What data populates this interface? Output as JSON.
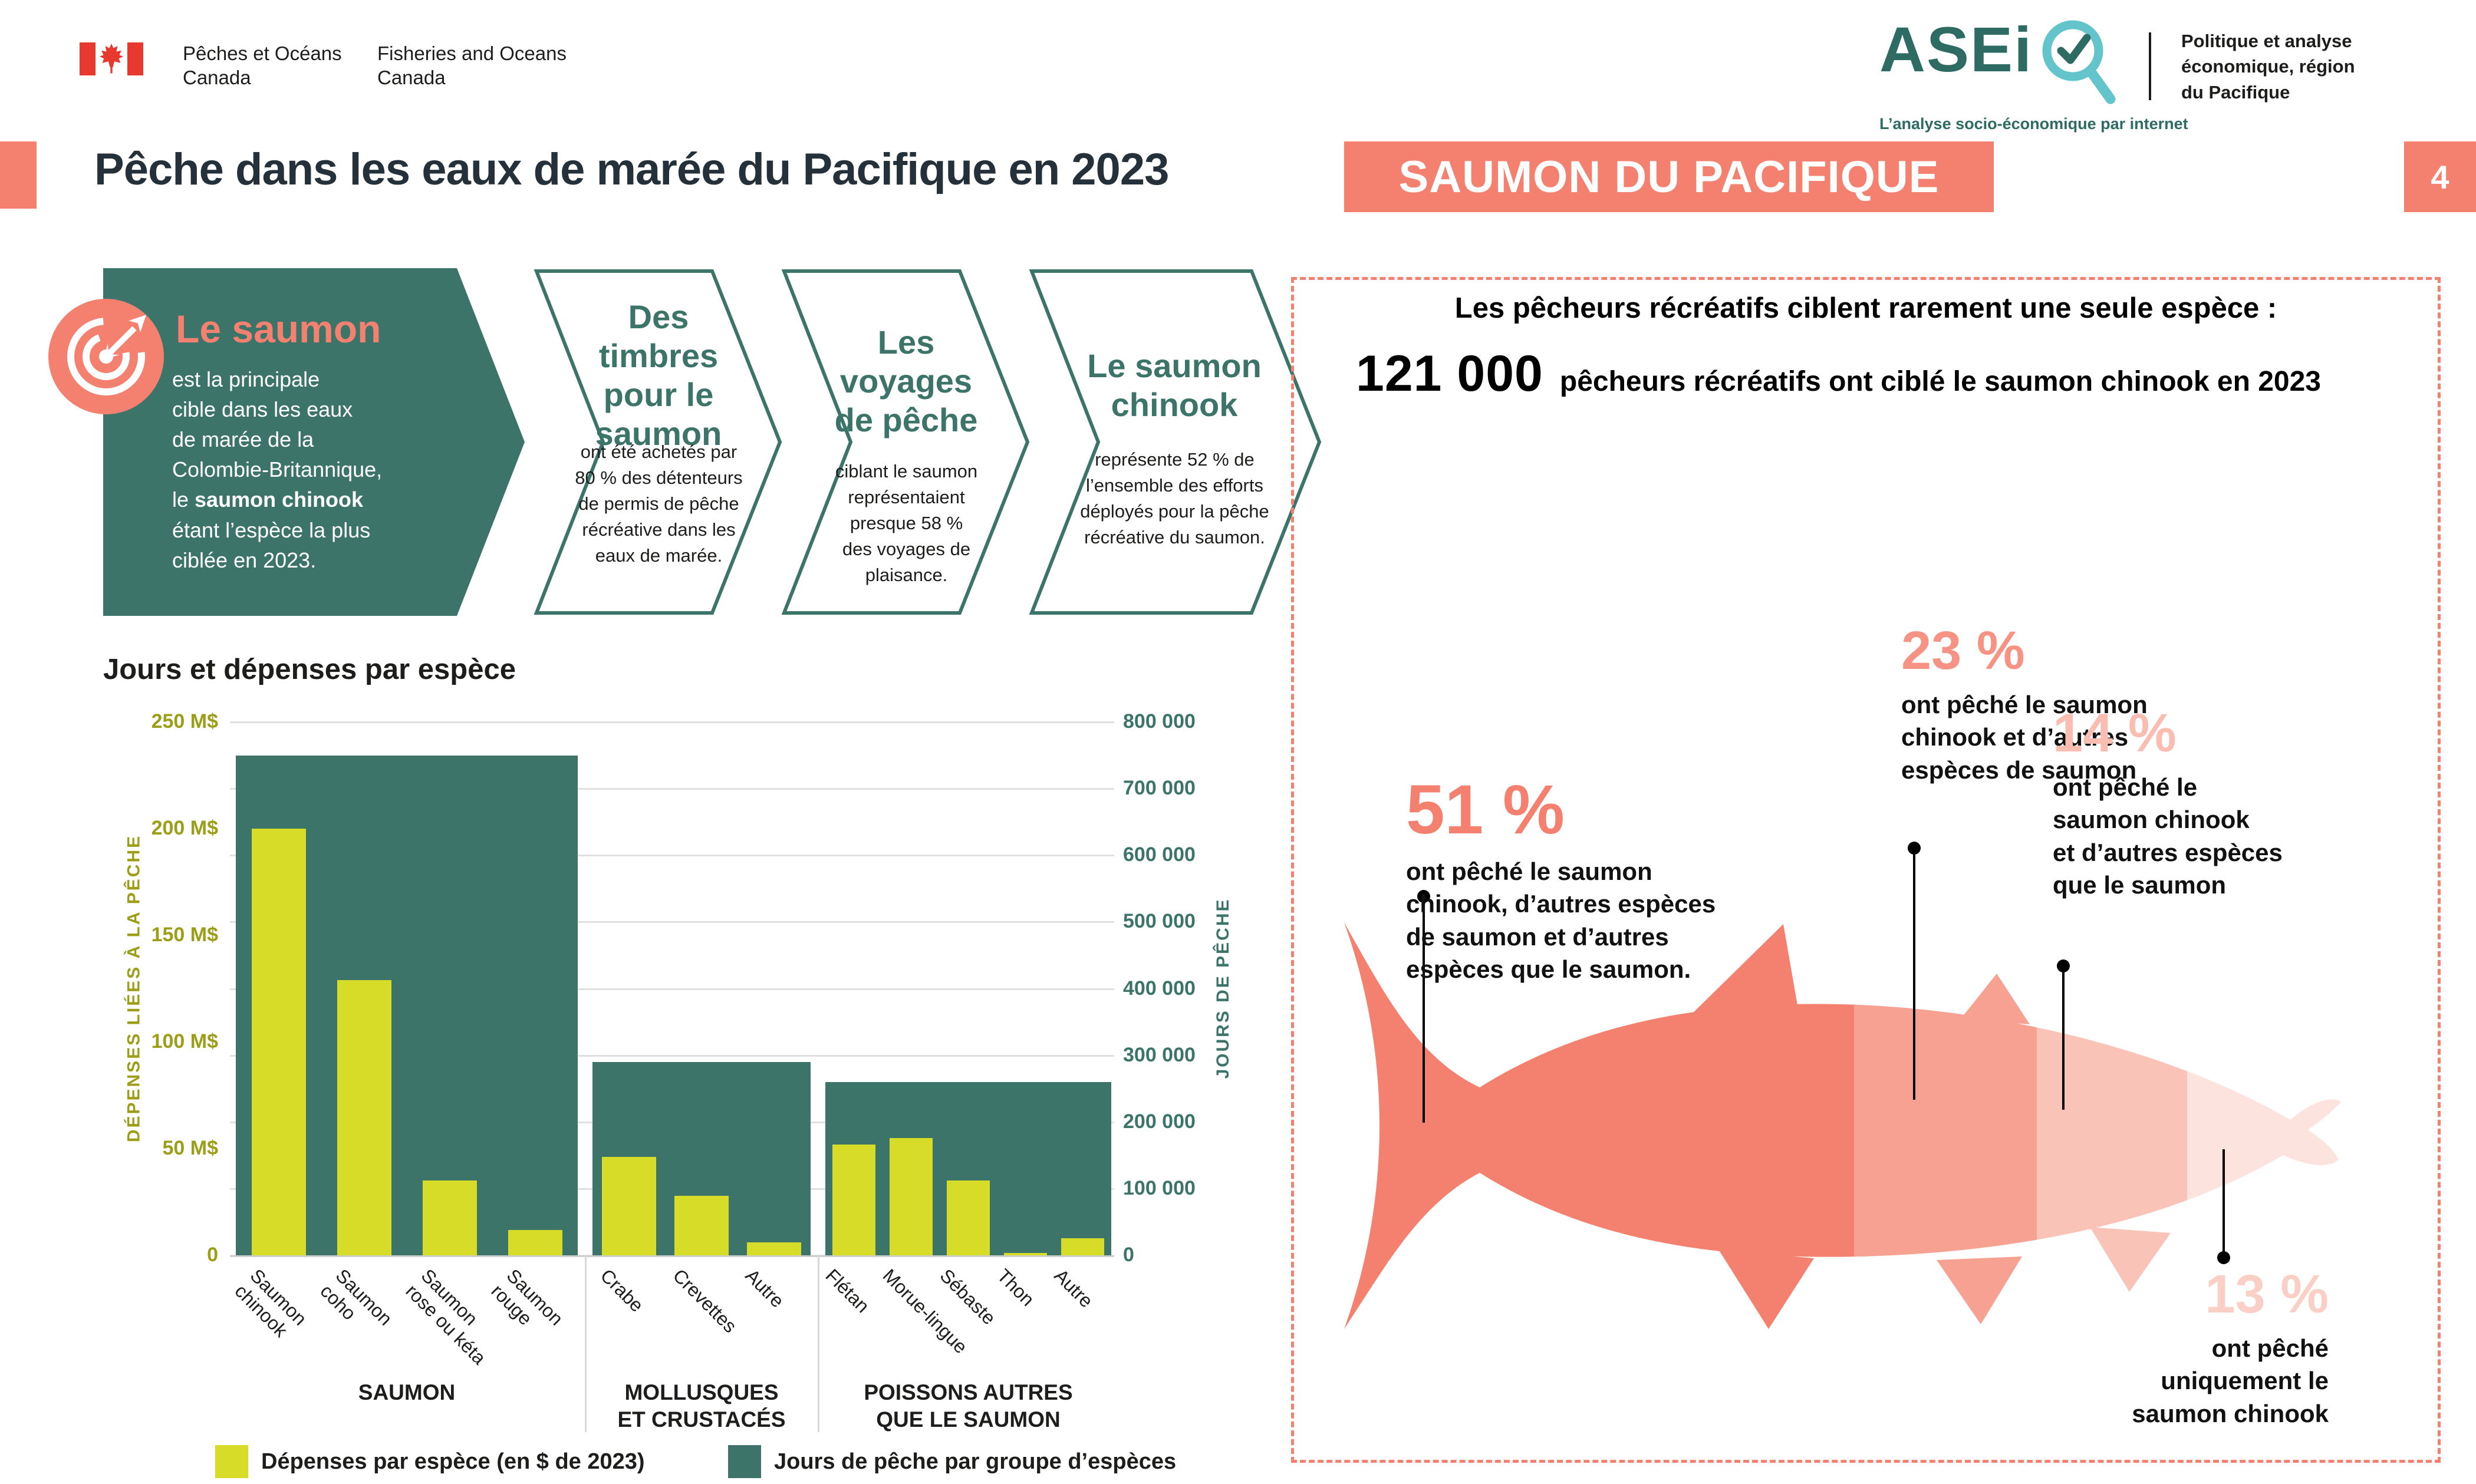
{
  "header": {
    "canada": {
      "fr_line1": "Pêches et Océans",
      "fr_line2": "Canada",
      "en_line1": "Fisheries and Oceans",
      "en_line2": "Canada"
    },
    "asei": {
      "wordmark": "ASEi",
      "tagline": "L’analyse socio-économique par internet"
    },
    "org": "Politique et analyse\néconomique, région\ndu Pacifique"
  },
  "title_bar": {
    "title": "Pêche dans les eaux de marée du Pacifique en 2023",
    "badge": "SAUMON DU PACIFIQUE",
    "page": "4"
  },
  "chevrons": [
    {
      "title": "Le saumon",
      "body_pre": "est la principale\ncible dans les eaux\nde marée de la\nColombie-Britannique,\nle ",
      "body_bold": "saumon chinook",
      "body_post": "\nétant l’espèce la plus\nciblée en 2023.",
      "icon": "target-arrow-icon"
    },
    {
      "title": "Des\ntimbres\npour le\nsaumon",
      "body": "ont été achetés par\n80 % des détenteurs\nde permis de pêche\nrécréative dans les\neaux de marée."
    },
    {
      "title": "Les\nvoyages\nde pêche",
      "body": "ciblant le saumon\nreprésentaient\npresque 58 %\ndes voyages de\nplaisance."
    },
    {
      "title": "Le saumon\nchinook",
      "body": "représente 52 % de\nl’ensemble des efforts\ndéployés pour la pêche\nrécréative du saumon."
    }
  ],
  "chart_data": {
    "type": "bar",
    "title": "Jours et dépenses par espèce",
    "left_axis": {
      "label": "DÉPENSES LIÉES À LA PÊCHE",
      "unit": "M$ (2023)",
      "max": 250,
      "ticks": [
        "0",
        "50 M$",
        "100 M$",
        "150 M$",
        "200 M$",
        "250 M$"
      ]
    },
    "right_axis": {
      "label": "JOURS DE PÊCHE",
      "max": 800000,
      "ticks": [
        "0",
        "100 000",
        "200 000",
        "300 000",
        "400 000",
        "500 000",
        "600 000",
        "700 000",
        "800 000"
      ]
    },
    "grid": true,
    "groups": [
      {
        "label": "SAUMON",
        "fishing_days": 750000,
        "species": [
          {
            "name": "Saumon\nchinook",
            "spend_M": 200
          },
          {
            "name": "Saumon\ncoho",
            "spend_M": 129
          },
          {
            "name": "Saumon\nrose ou kéta",
            "spend_M": 35
          },
          {
            "name": "Saumon\nrouge",
            "spend_M": 12
          }
        ]
      },
      {
        "label": "MOLLUSQUES\nET CRUSTACÉS",
        "fishing_days": 290000,
        "species": [
          {
            "name": "Crabe",
            "spend_M": 46
          },
          {
            "name": "Crevettes",
            "spend_M": 28
          },
          {
            "name": "Autre",
            "spend_M": 6
          }
        ]
      },
      {
        "label": "POISSONS AUTRES\nQUE LE SAUMON",
        "fishing_days": 260000,
        "species": [
          {
            "name": "Flétan",
            "spend_M": 52
          },
          {
            "name": "Morue-lingue",
            "spend_M": 55
          },
          {
            "name": "Sébaste",
            "spend_M": 35
          },
          {
            "name": "Thon",
            "spend_M": 1
          },
          {
            "name": "Autre",
            "spend_M": 8
          }
        ]
      }
    ],
    "legend": [
      {
        "label": "Dépenses par espèce (en $ de 2023)",
        "color": "#D6DC28"
      },
      {
        "label": "Jours de pêche par groupe d’espèces",
        "color": "#3C746A"
      }
    ],
    "legend_position": "bottom"
  },
  "panel": {
    "title": "Les pêcheurs récréatifs ciblent rarement une seule espèce :",
    "stat_number": "121 000",
    "stat_text": "pêcheurs récréatifs ont ciblé le saumon chinook en 2023",
    "callouts": [
      {
        "pct": "51 %",
        "color": "#F4816F",
        "text": "ont pêché le saumon\nchinook, d’autres espèces\nde saumon et d’autres\nespèces que le saumon."
      },
      {
        "pct": "23 %",
        "color": "#F69384",
        "text": "ont pêché le saumon\nchinook et d’autres\nespèces de saumon"
      },
      {
        "pct": "14 %",
        "color": "#F9BDB2",
        "text": "ont pêché le\nsaumon chinook\net d’autres espèces\nque le saumon"
      },
      {
        "pct": "13 %",
        "color": "#FACFC6",
        "text": "ont pêché\nuniquement le\nsaumon chinook"
      }
    ],
    "fish_bands": [
      "#F4816F",
      "#F7A192",
      "#FAC3B8",
      "#FCE3DD"
    ]
  },
  "colors": {
    "teal": "#3C746A",
    "salmon": "#F4816F",
    "yellow": "#D6DC28",
    "olive": "#9C9E17"
  }
}
